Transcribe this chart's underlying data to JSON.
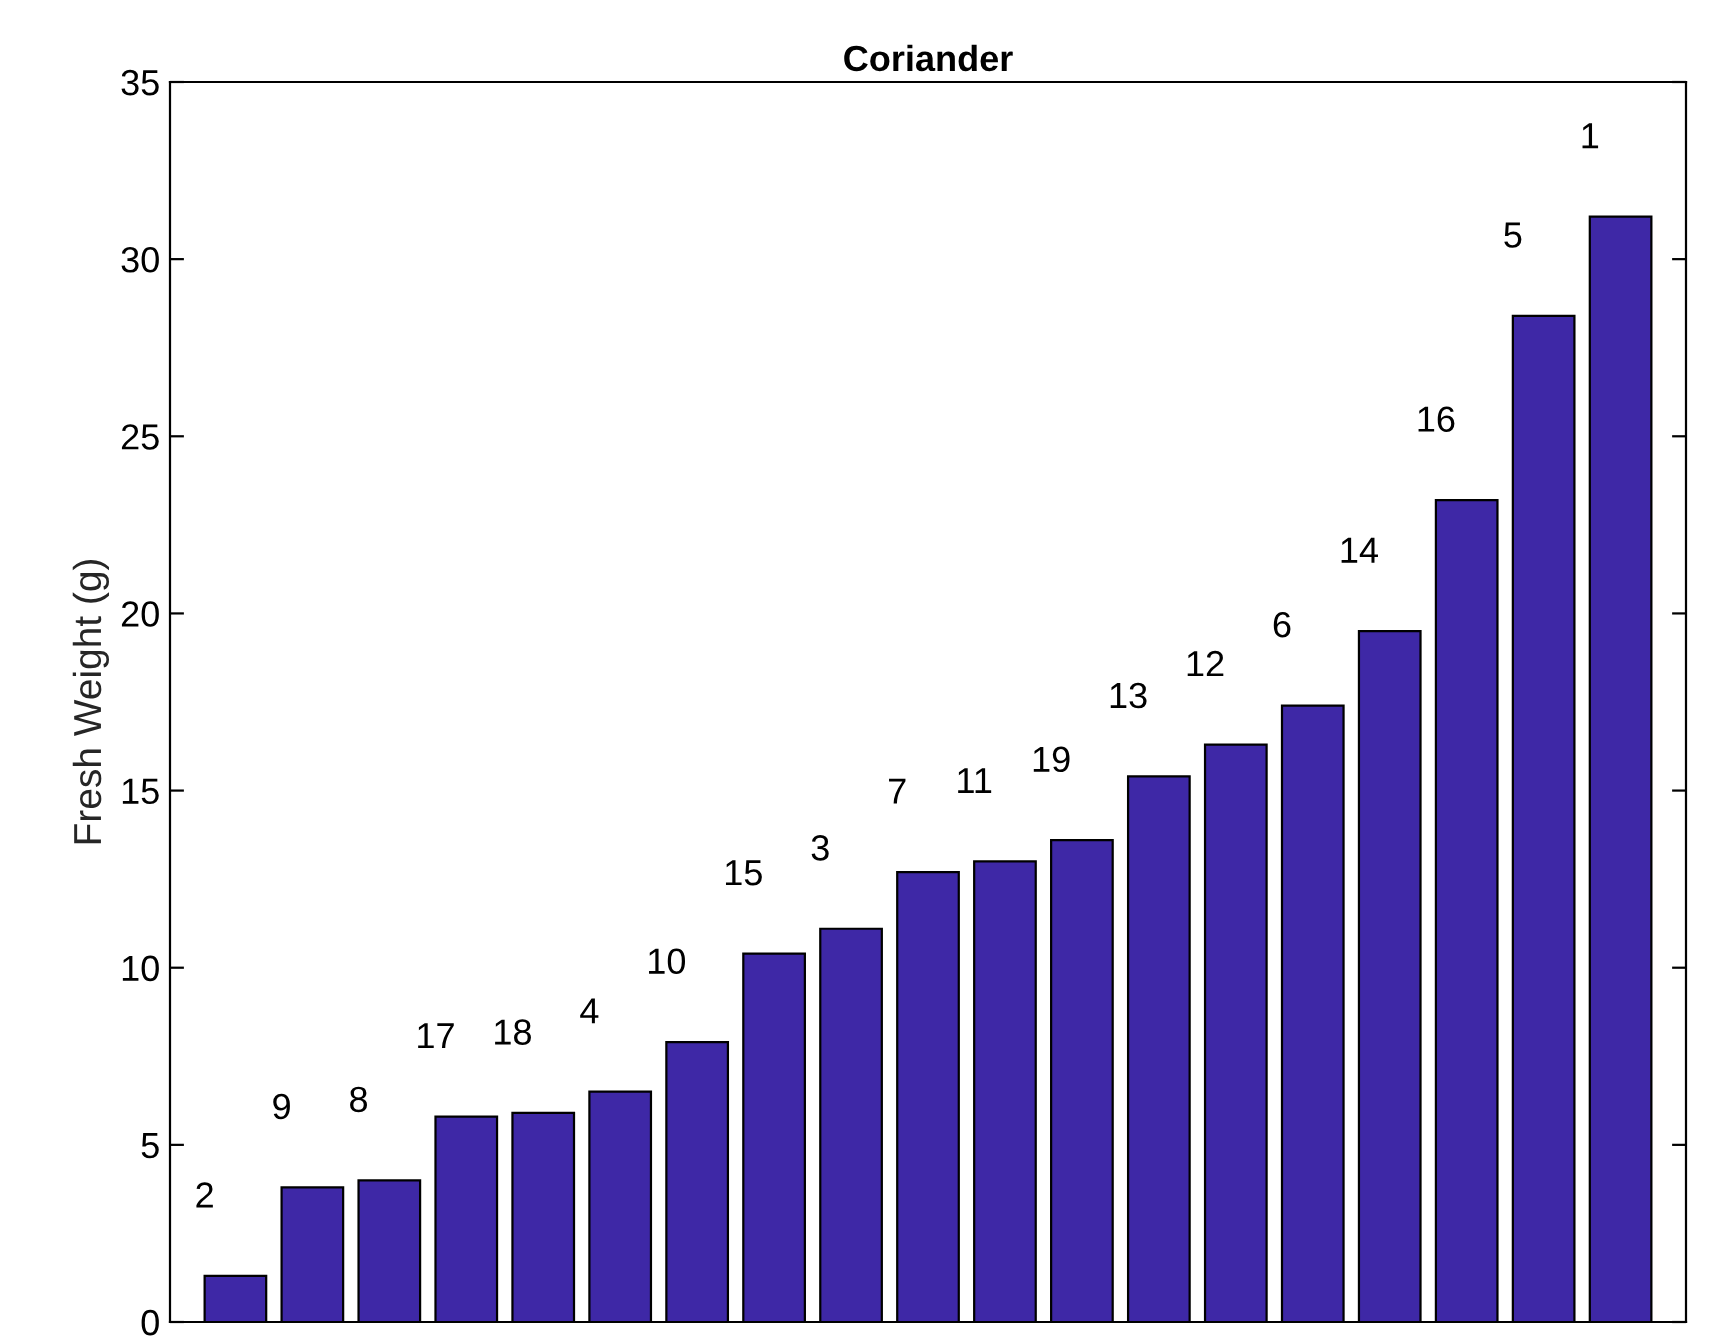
{
  "chart_data": {
    "type": "bar",
    "title": "Coriander",
    "ylabel": "Fresh Weight (g)",
    "categories": [
      "2",
      "9",
      "8",
      "17",
      "18",
      "4",
      "10",
      "15",
      "3",
      "7",
      "11",
      "19",
      "13",
      "12",
      "6",
      "14",
      "16",
      "5",
      "1"
    ],
    "values": [
      1.3,
      3.8,
      4.0,
      5.8,
      5.9,
      6.5,
      7.9,
      10.4,
      11.1,
      12.7,
      13.0,
      13.6,
      15.4,
      16.3,
      17.4,
      19.5,
      23.2,
      28.4,
      31.2
    ],
    "color": "#3e28a6",
    "ylim": [
      0,
      35
    ],
    "yticks": [
      0,
      5,
      10,
      15,
      20,
      25,
      30,
      35
    ],
    "grid": false
  }
}
